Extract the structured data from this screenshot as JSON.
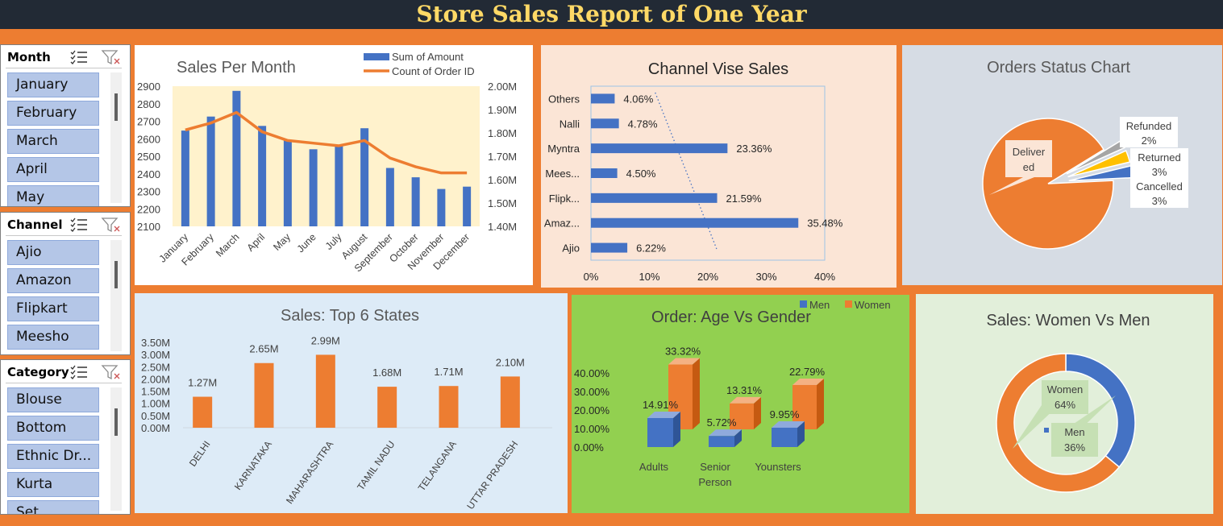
{
  "title": "Store Sales Report of One Year",
  "slicers": [
    {
      "name": "Month",
      "items": [
        "January",
        "February",
        "March",
        "April",
        "May"
      ]
    },
    {
      "name": "Channel",
      "items": [
        "Ajio",
        "Amazon",
        "Flipkart",
        "Meesho"
      ]
    },
    {
      "name": "Category",
      "items": [
        "Blouse",
        "Bottom",
        "Ethnic Dr...",
        "Kurta",
        "Set"
      ]
    }
  ],
  "colors": {
    "blue": "#4472C4",
    "orange": "#ED7D31",
    "gray": "#A5A5A5",
    "yellow": "#FFC000",
    "green_panel": "#92D050",
    "dark": "#222A35"
  },
  "chart_data": [
    {
      "type": "bar",
      "title": "Sales Per Month",
      "categories": [
        "January",
        "February",
        "March",
        "April",
        "May",
        "June",
        "July",
        "August",
        "September",
        "October",
        "November",
        "December"
      ],
      "series": [
        {
          "name": "Sum of Amount",
          "type": "bar",
          "axis": "right",
          "values": [
            1.81,
            1.87,
            1.98,
            1.83,
            1.77,
            1.73,
            1.75,
            1.82,
            1.65,
            1.61,
            1.56,
            1.57
          ]
        },
        {
          "name": "Count of Order ID",
          "type": "line",
          "axis": "left",
          "values": [
            2650,
            2690,
            2750,
            2640,
            2590,
            2575,
            2560,
            2590,
            2490,
            2440,
            2405,
            2405
          ]
        }
      ],
      "yticks_left": [
        "2100",
        "2200",
        "2300",
        "2400",
        "2500",
        "2600",
        "2700",
        "2800",
        "2900"
      ],
      "yticks_right": [
        "1.40M",
        "1.50M",
        "1.60M",
        "1.70M",
        "1.80M",
        "1.90M",
        "2.00M"
      ],
      "ylim_left": [
        2100,
        2900
      ],
      "ylim_right": [
        1.4,
        2.0
      ],
      "legend": "top-right"
    },
    {
      "type": "bar",
      "orientation": "horizontal",
      "title": "Channel Vise Sales",
      "categories": [
        "Others",
        "Nalli",
        "Myntra",
        "Mees...",
        "Flipk...",
        "Amaz...",
        "Ajio"
      ],
      "values": [
        4.06,
        4.78,
        23.36,
        4.5,
        21.59,
        35.48,
        6.22
      ],
      "labels": [
        "4.06%",
        "4.78%",
        "23.36%",
        "4.50%",
        "21.59%",
        "35.48%",
        "6.22%"
      ],
      "xticks": [
        "0%",
        "10%",
        "20%",
        "30%",
        "40%"
      ],
      "xlim": [
        0,
        40
      ],
      "trendline": true
    },
    {
      "type": "pie",
      "title": "Orders Status Chart",
      "slices": [
        {
          "name": "Delivered",
          "label": "Deliver ed",
          "value": 92,
          "pct": ""
        },
        {
          "name": "Refunded",
          "label": "Refunded",
          "value": 2,
          "pct": "2%"
        },
        {
          "name": "Returned",
          "label": "Returned",
          "value": 3,
          "pct": "3%"
        },
        {
          "name": "Cancelled",
          "label": "Cancelled",
          "value": 3,
          "pct": "3%"
        }
      ]
    },
    {
      "type": "bar",
      "title": "Sales: Top 6 States",
      "categories": [
        "DELHI",
        "KARNATAKA",
        "MAHARASHTRA",
        "TAMIL NADU",
        "TELANGANA",
        "UTTAR PRADESH"
      ],
      "values": [
        1.27,
        2.65,
        2.99,
        1.68,
        1.71,
        2.1
      ],
      "labels": [
        "1.27M",
        "2.65M",
        "2.99M",
        "1.68M",
        "1.71M",
        "2.10M"
      ],
      "yticks": [
        "0.00M",
        "0.50M",
        "1.00M",
        "1.50M",
        "2.00M",
        "2.50M",
        "3.00M",
        "3.50M"
      ],
      "ylim": [
        0,
        3.5
      ]
    },
    {
      "type": "bar",
      "title": "Order: Age Vs Gender",
      "categories": [
        "Adults",
        "Senior Person",
        "Younsters"
      ],
      "series": [
        {
          "name": "Men",
          "values": [
            14.91,
            5.72,
            9.95
          ],
          "labels": [
            "14.91%",
            "5.72%",
            "9.95%"
          ]
        },
        {
          "name": "Women",
          "values": [
            33.32,
            13.31,
            22.79
          ],
          "labels": [
            "33.32%",
            "13.31%",
            "22.79%"
          ]
        }
      ],
      "yticks": [
        "0.00%",
        "10.00%",
        "20.00%",
        "30.00%",
        "40.00%"
      ],
      "ylim": [
        0,
        40
      ],
      "legend": "top-right"
    },
    {
      "type": "pie",
      "title": "Sales: Women Vs Men",
      "slices": [
        {
          "name": "Women",
          "value": 64,
          "pct": "64%"
        },
        {
          "name": "Men",
          "value": 36,
          "pct": "36%"
        }
      ]
    }
  ]
}
